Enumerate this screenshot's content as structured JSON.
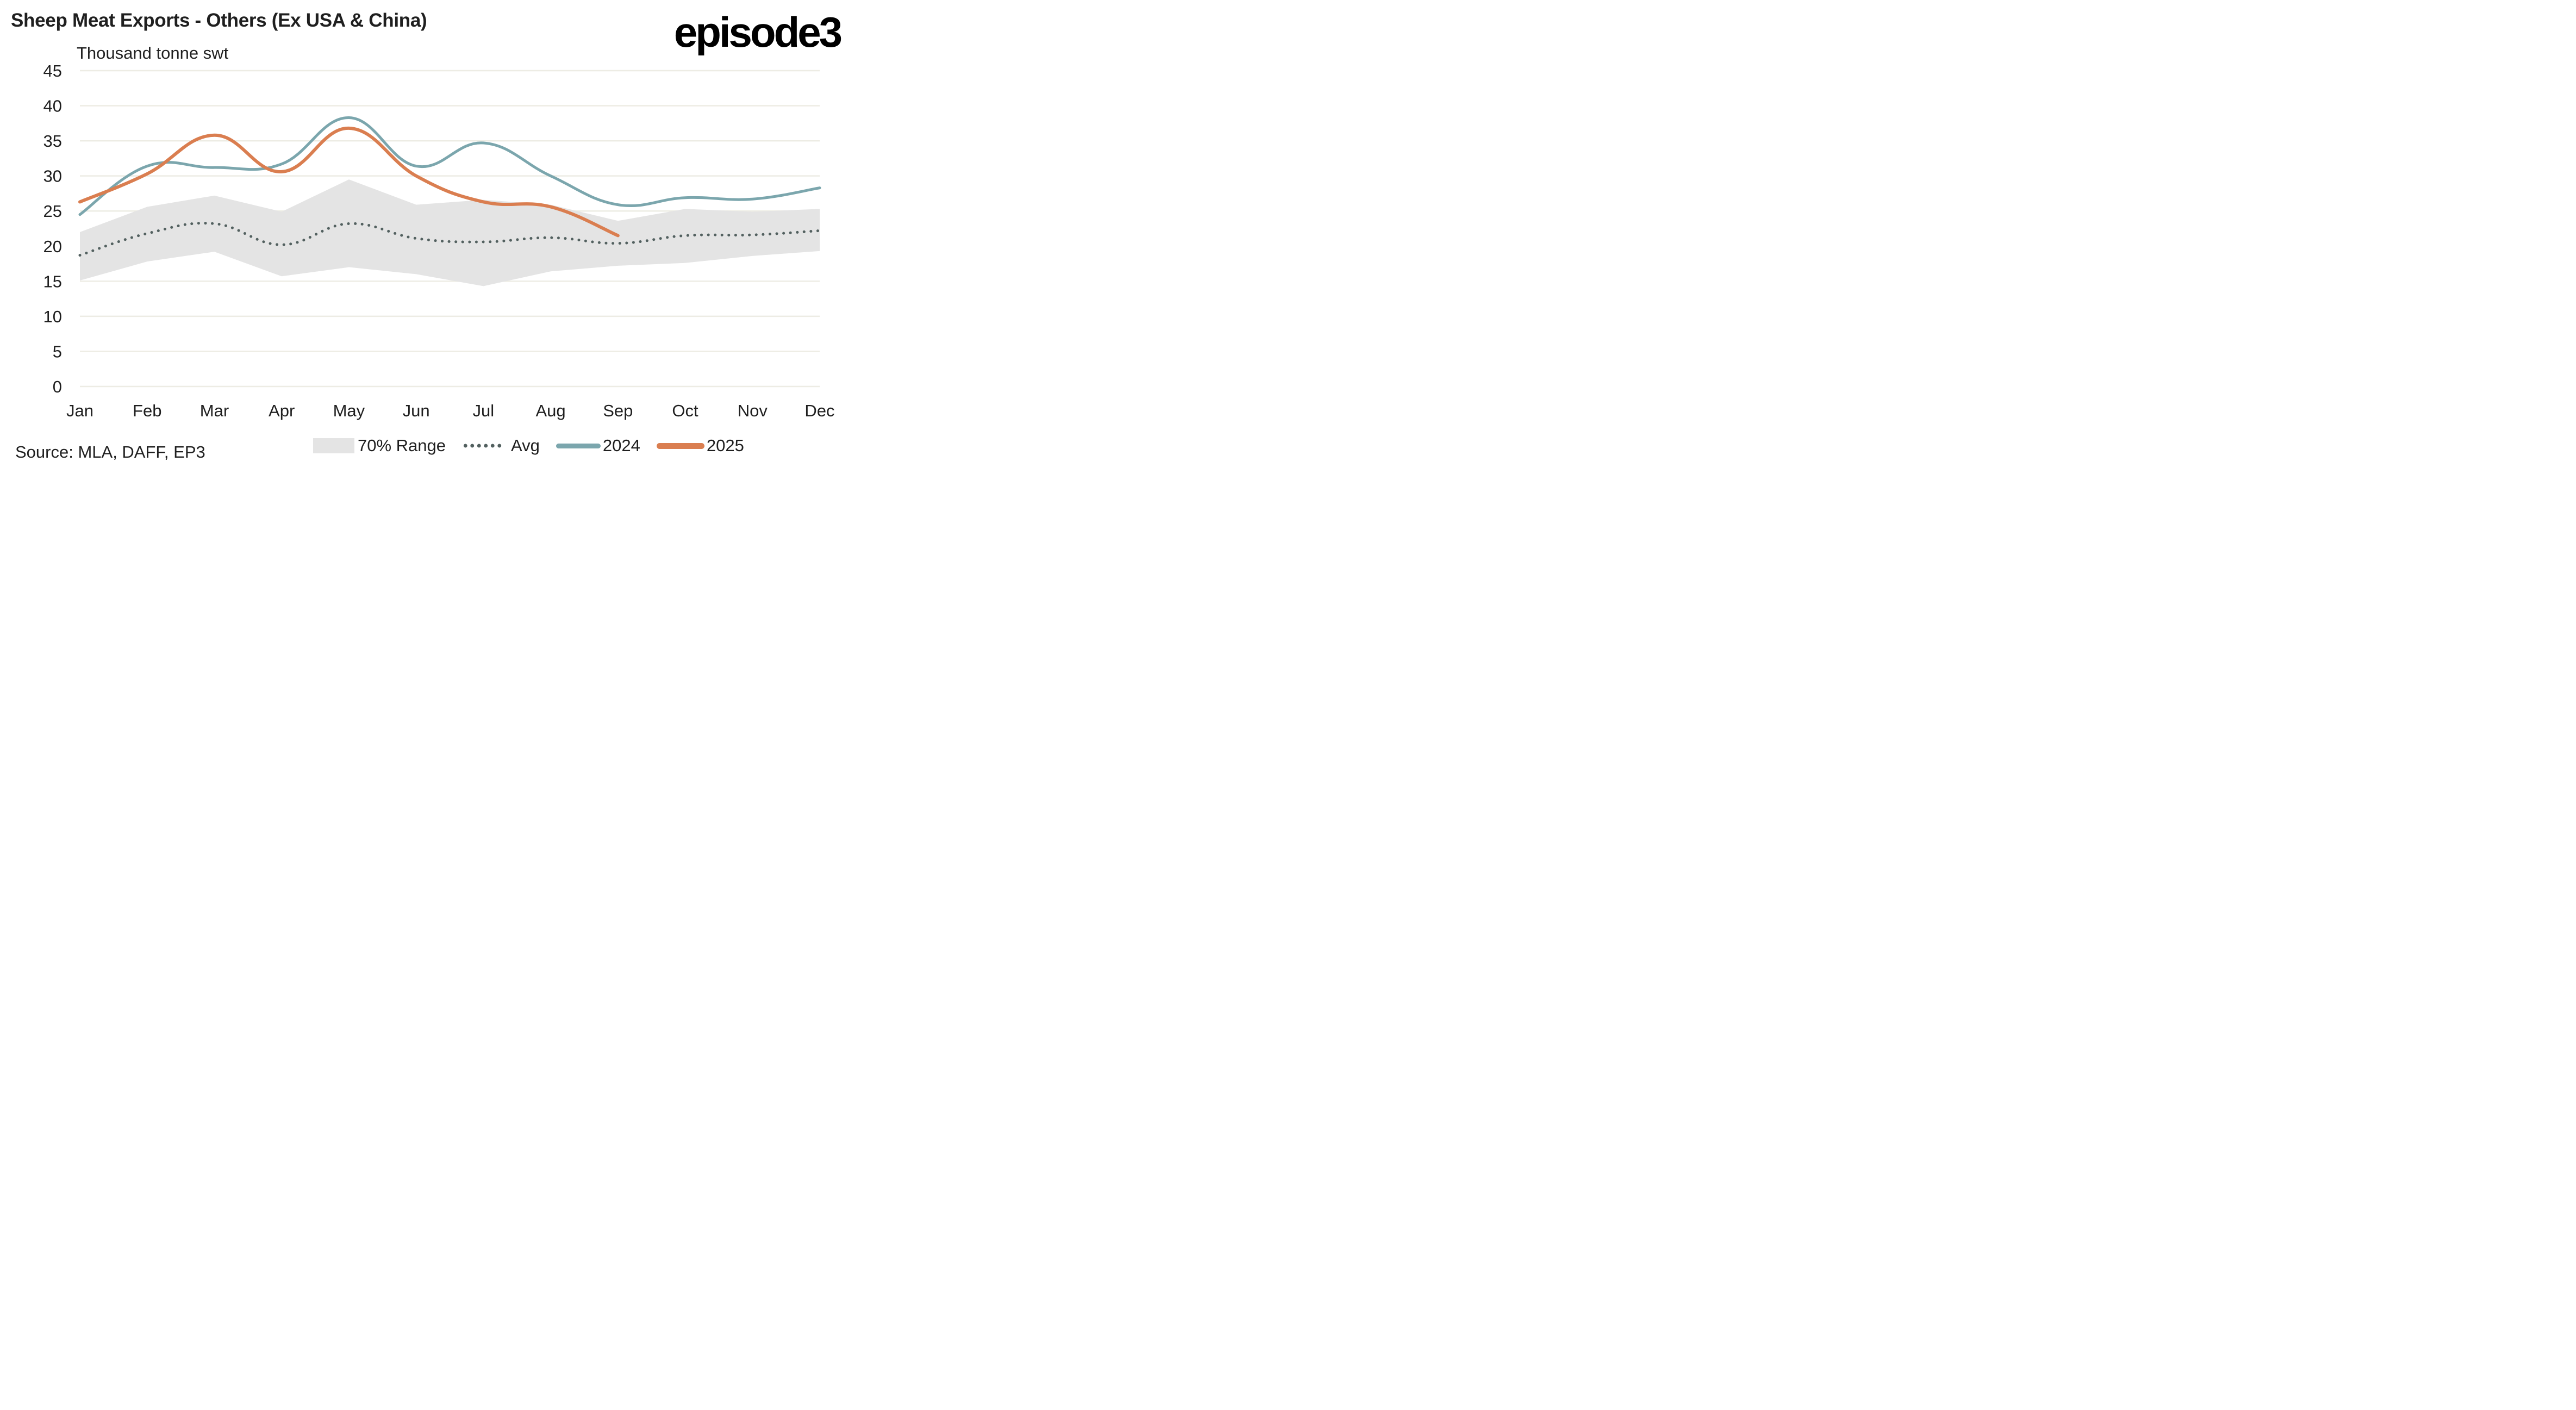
{
  "header": {
    "title": "Sheep Meat Exports - Others (Ex USA & China)",
    "logo": "episode3",
    "unit_label": "Thousand tonne swt"
  },
  "footer": {
    "source": "Source: MLA, DAFF, EP3"
  },
  "colors": {
    "range_fill": "#e4e4e4",
    "avg": "#52605f",
    "y2024": "#7ba6ad",
    "y2025": "#da7e50",
    "grid": "#edece4"
  },
  "legend": [
    {
      "key": "range",
      "label": "70% Range"
    },
    {
      "key": "avg",
      "label": "Avg"
    },
    {
      "key": "y2024",
      "label": "2024"
    },
    {
      "key": "y2025",
      "label": "2025"
    }
  ],
  "chart_data": {
    "type": "line",
    "title": "Sheep Meat Exports - Others (Ex USA & China)",
    "xlabel": "",
    "ylabel": "Thousand tonne swt",
    "ylim": [
      0,
      45
    ],
    "yticks": [
      0,
      5,
      10,
      15,
      20,
      25,
      30,
      35,
      40,
      45
    ],
    "grid": true,
    "legend_position": "bottom",
    "categories": [
      "Jan",
      "Feb",
      "Mar",
      "Apr",
      "May",
      "Jun",
      "Jul",
      "Aug",
      "Sep",
      "Oct",
      "Nov",
      "Dec"
    ],
    "range_70": {
      "name": "70% Range",
      "lower": [
        15.1,
        17.8,
        19.2,
        15.7,
        17.0,
        16.0,
        14.3,
        16.4,
        17.2,
        17.6,
        18.6,
        19.3
      ],
      "upper": [
        22.0,
        25.6,
        27.2,
        24.9,
        29.5,
        25.9,
        26.6,
        25.9,
        23.6,
        25.3,
        24.9,
        25.3
      ]
    },
    "series": [
      {
        "name": "Avg",
        "style": "dotted",
        "values": [
          18.7,
          21.8,
          23.2,
          20.2,
          23.2,
          21.1,
          20.6,
          21.2,
          20.4,
          21.5,
          21.6,
          22.2
        ]
      },
      {
        "name": "2024",
        "style": "solid",
        "values": [
          24.5,
          31.4,
          31.2,
          31.7,
          38.3,
          31.4,
          34.7,
          30.0,
          25.9,
          26.9,
          26.7,
          28.3
        ]
      },
      {
        "name": "2025",
        "style": "solid",
        "values": [
          26.3,
          30.3,
          35.8,
          30.6,
          36.8,
          30.0,
          26.3,
          25.6,
          21.5,
          null,
          null,
          null
        ]
      }
    ]
  }
}
